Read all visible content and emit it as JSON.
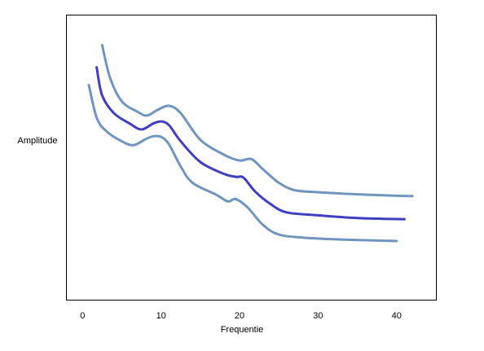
{
  "chart_data": {
    "type": "line",
    "title": "",
    "xlabel": "Frequentie",
    "ylabel": "Amplitude",
    "xlim": [
      -2,
      45
    ],
    "ylim": [
      -2.4,
      7.2
    ],
    "x_ticks": [
      0,
      10,
      20,
      30,
      40
    ],
    "y_ticks_shown": false,
    "grid": false,
    "legend": "none",
    "series": [
      {
        "role": "upper",
        "color": "#7095bf",
        "x": [
          2.5,
          3.5,
          5,
          7,
          8.2,
          9.5,
          11,
          12.5,
          15,
          18,
          20,
          21.5,
          23,
          25,
          27,
          30,
          35,
          40,
          42
        ],
        "y": [
          6.2,
          5.1,
          4.3,
          3.95,
          3.82,
          4.0,
          4.15,
          3.9,
          3.0,
          2.5,
          2.3,
          2.35,
          2.0,
          1.55,
          1.3,
          1.23,
          1.16,
          1.11,
          1.1
        ]
      },
      {
        "role": "center",
        "color": "#3f3fbf",
        "x": [
          1.8,
          2.5,
          4,
          6,
          7.5,
          9,
          10,
          11,
          12.5,
          15,
          18,
          19.5,
          20.5,
          22,
          24,
          26,
          30,
          35,
          41
        ],
        "y": [
          5.45,
          4.5,
          3.9,
          3.55,
          3.35,
          3.55,
          3.62,
          3.5,
          2.95,
          2.25,
          1.85,
          1.75,
          1.72,
          1.25,
          0.82,
          0.55,
          0.45,
          0.36,
          0.32
        ]
      },
      {
        "role": "lower",
        "color": "#7095bf",
        "x": [
          0.8,
          1.8,
          3,
          5,
          6.5,
          8,
          9,
          10,
          11,
          12.5,
          14,
          17,
          18.5,
          19.5,
          21,
          23,
          25,
          28,
          32,
          40
        ],
        "y": [
          4.85,
          3.75,
          3.3,
          2.95,
          2.82,
          3.02,
          3.12,
          3.1,
          2.85,
          2.1,
          1.55,
          1.15,
          0.92,
          1.0,
          0.72,
          0.12,
          -0.2,
          -0.3,
          -0.36,
          -0.42
        ]
      }
    ]
  }
}
